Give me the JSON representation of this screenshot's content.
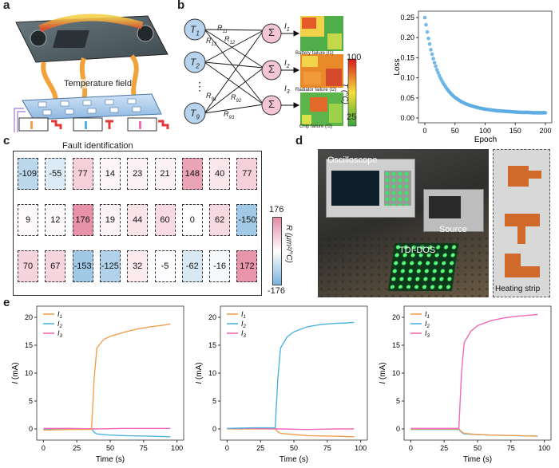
{
  "panels": {
    "a": "a",
    "b": "b",
    "c": "c",
    "d": "d",
    "e": "e"
  },
  "panel_a": {
    "temperature_field": "Temperature field",
    "fault_identification": "Fault identification"
  },
  "panel_b": {
    "nodes": [
      "T1",
      "T2",
      "T9"
    ],
    "node_subs": [
      "1",
      "2",
      "9"
    ],
    "weights": [
      [
        "R",
        "11"
      ],
      [
        "R",
        "13"
      ],
      [
        "R",
        "12"
      ],
      [
        "R",
        "91"
      ],
      [
        "R",
        "92"
      ],
      [
        "R",
        "93"
      ]
    ],
    "sum_symbol": "Σ",
    "outputs": [
      [
        "I",
        "1"
      ],
      [
        "I",
        "2"
      ],
      [
        "I",
        "3"
      ]
    ],
    "heatmap_captions": [
      "Battery failure (I1)",
      "Radiator failure (I2)",
      "Chip failure (I3)"
    ],
    "colorbar": {
      "max": "100",
      "min": "25",
      "label": "T (°C)"
    },
    "dots": "⋮"
  },
  "loss_chart": {
    "chart_data": {
      "type": "scatter",
      "xlabel": "Epoch",
      "ylabel": "Loss",
      "xlim": [
        0,
        200
      ],
      "ylim": [
        0,
        0.25
      ],
      "xticks": [
        0,
        50,
        100,
        150,
        200
      ],
      "yticks": [
        0.0,
        0.05,
        0.1,
        0.15,
        0.2,
        0.25
      ],
      "x": [
        0,
        5,
        10,
        15,
        20,
        25,
        30,
        35,
        40,
        45,
        50,
        60,
        70,
        80,
        90,
        100,
        110,
        120,
        130,
        140,
        150,
        160,
        170,
        180,
        190,
        200
      ],
      "y": [
        0.25,
        0.205,
        0.17,
        0.142,
        0.12,
        0.102,
        0.088,
        0.076,
        0.066,
        0.058,
        0.051,
        0.041,
        0.034,
        0.029,
        0.025,
        0.022,
        0.02,
        0.018,
        0.017,
        0.016,
        0.015,
        0.014,
        0.014,
        0.013,
        0.013,
        0.013
      ]
    },
    "xtick_labels": [
      "0",
      "50",
      "100",
      "150",
      "200"
    ],
    "ytick_labels": [
      "0.00",
      "0.05",
      "0.10",
      "0.15",
      "0.20",
      "0.25"
    ],
    "xlabel": "Epoch",
    "ylabel": "Loss",
    "color": "#5dade2"
  },
  "panel_c": {
    "chart_data": {
      "type": "heatmap",
      "rows": [
        [
          -109,
          -55,
          77,
          14,
          23,
          21,
          148,
          40,
          77
        ],
        [
          9,
          12,
          176,
          19,
          44,
          60,
          0,
          62,
          -150
        ],
        [
          70,
          67,
          -153,
          -125,
          32,
          -5,
          -62,
          -16,
          172
        ]
      ],
      "vmin": -176,
      "vmax": 176
    },
    "colorbar": {
      "max": "176",
      "min": "-176",
      "label": "R (μm²/°C)"
    }
  },
  "panel_d": {
    "labels": [
      "Oscilloscope",
      "Source",
      "TDI-DOS",
      "Heating strip"
    ]
  },
  "panel_e": {
    "chart_data": [
      {
        "type": "line",
        "xlabel": "Time (s)",
        "ylabel": "I (mA)",
        "xlim": [
          -5,
          105
        ],
        "ylim": [
          -2,
          22
        ],
        "series": [
          {
            "name": "I1",
            "x": [
              0,
              20,
              36,
              38,
              40,
              45,
              50,
              60,
              70,
              80,
              90,
              95
            ],
            "y": [
              -0.2,
              -0.1,
              -0.1,
              9,
              14.5,
              16.0,
              16.6,
              17.3,
              17.9,
              18.3,
              18.6,
              18.8
            ]
          },
          {
            "name": "I2",
            "x": [
              0,
              20,
              36,
              38,
              40,
              50,
              60,
              80,
              95
            ],
            "y": [
              -0.1,
              0.0,
              0.0,
              -0.6,
              -0.9,
              -1.1,
              -1.2,
              -1.3,
              -1.4
            ]
          },
          {
            "name": "I3",
            "x": [
              0,
              20,
              40,
              60,
              80,
              95
            ],
            "y": [
              0.1,
              0.1,
              0.0,
              0.1,
              0.1,
              0.1
            ]
          }
        ]
      },
      {
        "type": "line",
        "xlabel": "Time (s)",
        "ylabel": "I (mA)",
        "xlim": [
          -5,
          105
        ],
        "ylim": [
          -2,
          22
        ],
        "series": [
          {
            "name": "I1",
            "x": [
              0,
              20,
              36,
              38,
              40,
              50,
              60,
              80,
              95
            ],
            "y": [
              0.0,
              0.0,
              0.0,
              -0.5,
              -0.8,
              -1.0,
              -1.2,
              -1.3,
              -1.4
            ]
          },
          {
            "name": "I2",
            "x": [
              0,
              20,
              36,
              38,
              40,
              45,
              50,
              60,
              70,
              80,
              90,
              95
            ],
            "y": [
              0.1,
              0.2,
              0.2,
              9,
              14.5,
              16.5,
              17.4,
              18.3,
              18.7,
              18.9,
              19.0,
              19.1
            ]
          },
          {
            "name": "I3",
            "x": [
              0,
              20,
              40,
              60,
              80,
              95
            ],
            "y": [
              0.1,
              0.1,
              0.0,
              -0.1,
              0.0,
              0.0
            ]
          }
        ]
      },
      {
        "type": "line",
        "xlabel": "Time (s)",
        "ylabel": "I (mA)",
        "xlim": [
          -5,
          105
        ],
        "ylim": [
          -2,
          22
        ],
        "series": [
          {
            "name": "I1",
            "x": [
              0,
              20,
              36,
              38,
              40,
              50,
              60,
              80,
              95
            ],
            "y": [
              0.0,
              0.0,
              0.0,
              -0.5,
              -0.8,
              -1.0,
              -1.1,
              -1.2,
              -1.3
            ]
          },
          {
            "name": "I2",
            "x": [
              0,
              20,
              36,
              38,
              40,
              50,
              60,
              80,
              95
            ],
            "y": [
              -0.1,
              -0.1,
              -0.1,
              -0.6,
              -0.9,
              -1.0,
              -1.1,
              -1.2,
              -1.3
            ]
          },
          {
            "name": "I3",
            "x": [
              0,
              20,
              36,
              38,
              40,
              45,
              50,
              60,
              70,
              80,
              90,
              95
            ],
            "y": [
              0.1,
              0.1,
              0.1,
              10,
              15.5,
              17.5,
              18.5,
              19.4,
              19.9,
              20.2,
              20.4,
              20.5
            ]
          }
        ]
      }
    ],
    "xtick_labels": [
      "0",
      "25",
      "50",
      "75",
      "100"
    ],
    "ytick_labels": [
      "0",
      "5",
      "10",
      "15",
      "20"
    ],
    "xlabel": "Time (s)",
    "ylabel_main": "I",
    "ylabel_unit": " (mA)",
    "legend": [
      [
        "I",
        "1"
      ],
      [
        "I",
        "2"
      ],
      [
        "I",
        "3"
      ]
    ],
    "colors": [
      "#f0a050",
      "#4fb4df",
      "#f06ab8"
    ]
  }
}
